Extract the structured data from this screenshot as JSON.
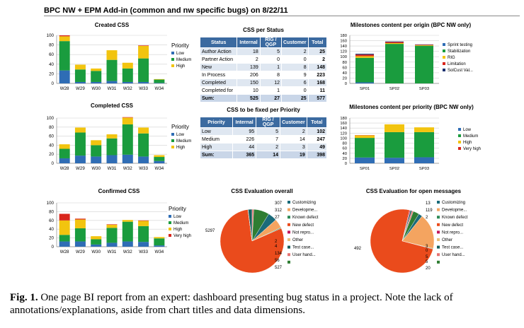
{
  "page": {
    "title": "BPC NW + EPM Add-in (common and nw specific bugs) on 8/22/11",
    "caption_label": "Fig. 1.",
    "caption_text": "One page BI report from an expert: dashboard presenting bug status in a project. Note the lack of annotations/explanations, aside from chart titles and data dimensions."
  },
  "colors": {
    "low": "#2f6db5",
    "medium": "#1a9c3e",
    "high": "#f2c40f",
    "very_high": "#d9261c",
    "table_header": "#3b6aa0",
    "pie_red": "#ea4b1c"
  },
  "chart_data": [
    {
      "id": "created",
      "type": "bar",
      "title": "Created CSS",
      "categories": [
        "W28",
        "W29",
        "W30",
        "W31",
        "W32",
        "W33",
        "W34"
      ],
      "ylim": [
        0,
        100
      ],
      "yticks": [
        0,
        20,
        40,
        60,
        80,
        100
      ],
      "legend_title": "Priority",
      "series": [
        {
          "name": "Low",
          "color": "#2f6db5",
          "values": [
            27,
            3,
            3,
            5,
            3,
            3,
            1
          ]
        },
        {
          "name": "Medium",
          "color": "#1a9c3e",
          "values": [
            61,
            26,
            23,
            44,
            28,
            49,
            7
          ]
        },
        {
          "name": "High",
          "color": "#f2c40f",
          "values": [
            10,
            10,
            5,
            20,
            12,
            26,
            1
          ]
        },
        {
          "name": "",
          "color": "#d9261c",
          "values": [
            2,
            0,
            0,
            0,
            0,
            1,
            0
          ]
        }
      ]
    },
    {
      "id": "completed",
      "type": "bar",
      "title": "Completed CSS",
      "categories": [
        "W28",
        "W29",
        "W30",
        "W31",
        "W32",
        "W33",
        "W34"
      ],
      "ylim": [
        0,
        100
      ],
      "yticks": [
        0,
        20,
        40,
        60,
        80,
        100
      ],
      "legend_title": "Priority",
      "series": [
        {
          "name": "Low",
          "color": "#2f6db5",
          "values": [
            11,
            17,
            15,
            18,
            19,
            15,
            5
          ]
        },
        {
          "name": "Medium",
          "color": "#1a9c3e",
          "values": [
            21,
            51,
            25,
            37,
            67,
            51,
            9
          ]
        },
        {
          "name": "High",
          "color": "#f2c40f",
          "values": [
            10,
            11,
            11,
            9,
            15,
            13,
            4
          ]
        },
        {
          "name": "",
          "color": "#d9261c",
          "values": [
            0,
            0,
            0,
            0,
            1,
            0,
            0
          ]
        }
      ]
    },
    {
      "id": "confirmed",
      "type": "bar",
      "title": "Confirmed CSS",
      "categories": [
        "W28",
        "W29",
        "W30",
        "W31",
        "W32",
        "W33",
        "W34"
      ],
      "ylim": [
        0,
        100
      ],
      "yticks": [
        0,
        20,
        40,
        60,
        80,
        100
      ],
      "legend_title": "Priority",
      "series": [
        {
          "name": "Low",
          "color": "#2f6db5",
          "values": [
            12,
            12,
            5,
            9,
            12,
            11,
            3
          ]
        },
        {
          "name": "Medium",
          "color": "#1a9c3e",
          "values": [
            15,
            30,
            12,
            34,
            45,
            36,
            16
          ]
        },
        {
          "name": "High",
          "color": "#f2c40f",
          "values": [
            33,
            20,
            7,
            7,
            4,
            12,
            3
          ]
        },
        {
          "name": "Very high",
          "color": "#d9261c",
          "values": [
            15,
            2,
            0,
            1,
            0,
            1,
            0
          ]
        }
      ]
    },
    {
      "id": "ms_origin",
      "type": "bar",
      "title": "Milestones content per origin (BPC NW only)",
      "categories": [
        "SP01",
        "SP02",
        "SP03"
      ],
      "ylim": [
        0,
        180
      ],
      "yticks": [
        0,
        20,
        40,
        60,
        80,
        100,
        120,
        140,
        160,
        180
      ],
      "series": [
        {
          "name": "Sprint testing",
          "color": "#2f6db5",
          "values": [
            4,
            0,
            0
          ]
        },
        {
          "name": "Stabilization",
          "color": "#1a9c3e",
          "values": [
            92,
            148,
            141
          ]
        },
        {
          "name": "RIG",
          "color": "#f2c40f",
          "values": [
            6,
            3,
            2
          ]
        },
        {
          "name": "Limitation",
          "color": "#d9261c",
          "values": [
            6,
            4,
            2
          ]
        },
        {
          "name": "SolCust Val...",
          "color": "#1b2f6e",
          "values": [
            3,
            2,
            1
          ]
        }
      ]
    },
    {
      "id": "ms_priority",
      "type": "bar",
      "title": "Milestones content per priority (BPC NW only)",
      "categories": [
        "SP01",
        "SP02",
        "SP03"
      ],
      "ylim": [
        0,
        180
      ],
      "yticks": [
        0,
        20,
        40,
        60,
        80,
        100,
        120,
        140,
        160,
        180
      ],
      "series": [
        {
          "name": "Low",
          "color": "#2f6db5",
          "values": [
            23,
            22,
            24
          ]
        },
        {
          "name": "Medium",
          "color": "#1a9c3e",
          "values": [
            78,
            102,
            100
          ]
        },
        {
          "name": "High",
          "color": "#f2c40f",
          "values": [
            10,
            31,
            19
          ]
        },
        {
          "name": "Very high",
          "color": "#d9261c",
          "values": [
            1,
            0,
            0
          ]
        }
      ]
    },
    {
      "id": "eval_overall",
      "type": "pie",
      "title": "CSS Evaluation overall",
      "slices": [
        {
          "name": "Customizing",
          "value": 307,
          "color": "#1a6b7a"
        },
        {
          "name": "Developme...",
          "value": 312,
          "color": "#f4a460"
        },
        {
          "name": "Known defect",
          "value": 27,
          "color": "#2e8b57"
        },
        {
          "name": "New defect",
          "value": 5297,
          "color": "#ea4b1c"
        },
        {
          "name": "Not repro...",
          "value": 2,
          "color": "#c2185b"
        },
        {
          "name": "Other",
          "value": 4,
          "color": "#e8c07d"
        },
        {
          "name": "Test case...",
          "value": 134,
          "color": "#16605e"
        },
        {
          "name": "User hand...",
          "value": 56,
          "color": "#e57373"
        },
        {
          "name": "",
          "value": 527,
          "color": "#2e7d32"
        }
      ]
    },
    {
      "id": "eval_open",
      "type": "pie",
      "title": "CSS Evaluation for open messages",
      "slices": [
        {
          "name": "Customizing",
          "value": 13,
          "color": "#1a6b7a"
        },
        {
          "name": "Developme...",
          "value": 119,
          "color": "#f4a460"
        },
        {
          "name": "Known defect",
          "value": 2,
          "color": "#2e8b57"
        },
        {
          "name": "New defect",
          "value": 492,
          "color": "#ea4b1c"
        },
        {
          "name": "Not repro...",
          "value": 3,
          "color": "#c2185b"
        },
        {
          "name": "Other",
          "value": 0,
          "color": "#e8c07d"
        },
        {
          "name": "Test case...",
          "value": 5,
          "color": "#16605e"
        },
        {
          "name": "User hand...",
          "value": 5,
          "color": "#e57373"
        },
        {
          "name": "",
          "value": 20,
          "color": "#2e7d32"
        }
      ]
    }
  ],
  "tables": {
    "per_status": {
      "title": "CSS per Status",
      "headers": [
        "Status",
        "Internal",
        "RIG / QGP",
        "Customer",
        "Total"
      ],
      "rows": [
        [
          "Author Action",
          "18",
          "5",
          "2",
          "25"
        ],
        [
          "Partner Action",
          "2",
          "0",
          "0",
          "2"
        ],
        [
          "New",
          "139",
          "1",
          "8",
          "148"
        ],
        [
          "In Process",
          "206",
          "8",
          "9",
          "223"
        ],
        [
          "Completed",
          "150",
          "12",
          "6",
          "168"
        ],
        [
          "Completed for",
          "10",
          "1",
          "0",
          "11"
        ],
        [
          "Sum:",
          "525",
          "27",
          "25",
          "577"
        ]
      ]
    },
    "to_be_fixed": {
      "title": "CSS to be fixed per Priority",
      "headers": [
        "Priority",
        "Internal",
        "RIG / QGP",
        "Customer",
        "Total"
      ],
      "rows": [
        [
          "Low",
          "95",
          "5",
          "2",
          "102"
        ],
        [
          "Medium",
          "226",
          "7",
          "14",
          "247"
        ],
        [
          "High",
          "44",
          "2",
          "3",
          "49"
        ],
        [
          "Sum:",
          "365",
          "14",
          "19",
          "398"
        ]
      ]
    }
  }
}
